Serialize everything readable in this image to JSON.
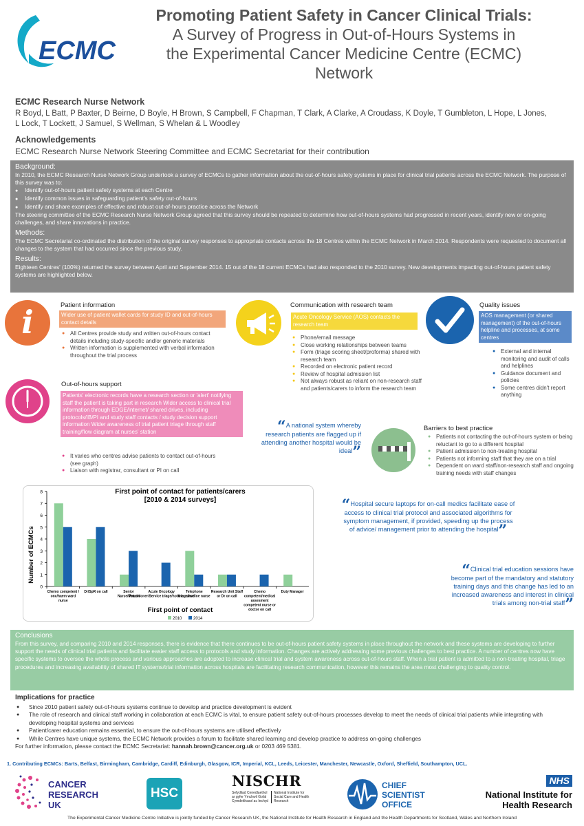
{
  "header": {
    "logo_text": "ECMC",
    "title_line1": "Promoting Patient Safety in Cancer Clinical Trials:",
    "title_line2": "A Survey of Progress in Out-of-Hours Systems in",
    "title_line3": "the Experimental Cancer Medicine Centre (ECMC)",
    "title_line4": "Network"
  },
  "network": {
    "heading": "ECMC Research Nurse Network",
    "authors_line1": "R Boyd, L Batt, P Baxter, D Beirne, D Boyle, H Brown, S Campbell, F Chapman, T Clark, A Clarke, A Croudass, K Doyle, T Gumbleton, L Hope, L Jones,",
    "authors_line2": "L Lock, T Lockett, J Samuel, S Wellman, S Whelan & L Woodley"
  },
  "acknowledgements": {
    "heading": "Acknowledgements",
    "text": "ECMC Research Nurse Network Steering Committee and ECMC Secretariat for their contribution"
  },
  "background": {
    "heading": "Background:",
    "text1": "In 2010, the ECMC Research Nurse Network Group undertook a survey of ECMCs to gather information about the out-of-hours safety systems in place for clinical trial patients across the ECMC Network. The purpose of this survey was to:",
    "bullets": [
      "Identify out-of-hours patient safety systems at each Centre",
      "Identify common issues in safeguarding patient's safety out-of-hours",
      "Identify and share examples of effective and robust out-of-hours practice across the Network"
    ],
    "text2": "The steering committee of the ECMC Research Nurse Network Group agreed that this survey should be repeated to determine how out-of-hours systems had progressed in recent years, identify new or on-going challenges, and share innovations in practice.",
    "methods_heading": "Methods:",
    "methods_text": "The ECMC Secretariat co-ordinated the distribution of the original survey responses to appropriate contacts across the 18 Centres within the ECMC Network in March 2014. Respondents were requested to document all changes to the system that had occurred since the previous study.",
    "results_heading": "Results:",
    "results_text": "Eighteen Centres' (100%) returned the survey between April and September 2014. 15 out of the 18 current ECMCs had also responded to the 2010 survey.  New developments impacting out-of-hours patient safety systems are highlighted below."
  },
  "patient_info": {
    "title": "Patient information",
    "highlight": "Wider use of patient wallet cards for study ID and out-of-hours contact details",
    "bullets": [
      "All Centres provide study and written out-of-hours contact details including study-specific and/or generic materials",
      "Written information is supplemented with verbal information throughout the trial process"
    ],
    "icon_glyph": "i"
  },
  "communication": {
    "title": "Communication with research team",
    "highlight": "Acute Oncology Service (AOS) contacts the research team",
    "bullets": [
      "Phone/email message",
      "Close working relationships between teams",
      "Form (triage scoring sheet/proforma) shared with research team",
      "Recorded on electronic patient record",
      "Review of hospital admission list",
      "Not always robust as reliant on non-research staff and patients/carers to inform the research team"
    ]
  },
  "quality": {
    "title": "Quality issues",
    "highlight": "AOS management (or shared management) of the out-of-hours helpline and processes, at some centres",
    "bullets": [
      "External and internal monitoring and audit of calls and helplines",
      "Guidance document and policies",
      "Some centres didn't report anything"
    ]
  },
  "ooh_support": {
    "title": "Out-of-hours support",
    "highlight": "Patients' electronic records have a research section or 'alert' notifying staff the patient is taking part in research Wider access to clinical trial information through EDGE/internet/ shared drives, including protocols/IB/PI and study staff contacts / study decision support information Wider awareness of trial patient triage through staff training/flow diagram at nurses' station",
    "bullets": [
      "It varies who centres advise patients to contact out-of-hours (see graph)",
      "Liaison with registrar, consultant or PI on call"
    ]
  },
  "quote1": {
    "open": "“",
    "text": "A national system whereby research patients are flagged up if attending another hospital would be ideal",
    "close": "”"
  },
  "barriers": {
    "title": "Barriers to best practice",
    "bullets": [
      "Patients not contacting the out-of-hours system or being reluctant to go to a different hospital",
      "Patient admission to non-treating hospital",
      "Patients not informing staff that they are on a trial",
      "Dependent on ward staff/non-research staff and ongoing training needs with staff changes"
    ]
  },
  "quote2": {
    "open": "“",
    "text": "Hospital secure laptops for on-call medics facilitate ease of access to clinical trial protocol and associated algorithms for symptom management, if provided, speeding up the process of advice/ management prior to attending the hospital",
    "close": "”"
  },
  "quote3": {
    "open": "“",
    "text": "Clinical trial education sessions have become part of the mandatory and statutory training days and this change has led to an increased awareness and interest in clinical trials among non-trial staff",
    "close": "”"
  },
  "chart_data": {
    "type": "bar",
    "title": "First point of contact for patients/carers",
    "subtitle": "[2010 & 2014 surveys]",
    "xlabel": "First point of contact",
    "ylabel": "Number of ECMCs",
    "ylim": [
      0,
      8
    ],
    "yticks": [
      "0",
      "1",
      "2",
      "3",
      "4",
      "5",
      "6",
      "7",
      "8"
    ],
    "categories": [
      "Chemo competent / onc/haem ward nurse",
      "Dr/SpR on call",
      "Senior Nurse/Matron",
      "Acute Oncology Practitioner/Service triage/hotline nurse",
      "Telephone triage/hotline nurse",
      "Research Unit Staff or Dr on call",
      "Chemo competent/medical assessment competent nurse or doctor on call",
      "Duty Manager"
    ],
    "category_lines": [
      [
        "Chemo competent /",
        "onc/haem ward",
        "nurse"
      ],
      [
        "Dr/SpR on call"
      ],
      [
        "Senior",
        "Nurse/Matron"
      ],
      [
        "Acute Oncology",
        "Practitioner/Service triage/hotline nurse"
      ],
      [
        "Telephone",
        "triage/hotline nurse"
      ],
      [
        "Research Unit Staff",
        "or Dr on call"
      ],
      [
        "Chemo",
        "competent/medical",
        "assesment",
        "competent nurse or",
        "doctor on call"
      ],
      [
        "Duty Manager"
      ]
    ],
    "series": [
      {
        "name": "2010",
        "values": [
          7,
          4,
          1,
          0,
          3,
          1,
          0,
          1
        ],
        "color": "#8fd09a"
      },
      {
        "name": "2014",
        "values": [
          5,
          5,
          3,
          2,
          1,
          1,
          1,
          0
        ],
        "color": "#1b64ae"
      }
    ],
    "legend": "bottom",
    "grid": false
  },
  "conclusions": {
    "heading": "Conclusions",
    "text": "From this survey, and comparing 2010 and 2014 responses, there is evidence that there continues to be out-of-hours patient safety systems in place throughout the network and these systems are developing to further support the needs of clinical trial patients and facilitate easier staff access to protocols and study information.  Changes are actively addressing some previous challenges to best practice.  A number of centres now have specific systems to oversee the whole process and various approaches are adopted to increase clinical trial and system awareness across out-of-hours staff.  When a trial patient is admitted to a non-treating hospital, triage procedures and increasing availability of shared IT systems/trial information across hospitals are facilitating research communication, however this remains the area most challenging to quality control."
  },
  "implications": {
    "heading": "Implications for practice",
    "bullets": [
      "Since 2010 patient safety out-of-hours systems continue to develop and practice development is evident",
      "The role of research and clinical staff working in collaboration at each ECMC is vital, to ensure patient safety out-of-hours processes develop to meet the needs of clinical trial patients while integrating with developing hospital systems and services",
      "Patient/carer education remains essential, to ensure the out-of-hours systems are utilised effectively",
      "While Centres have unique systems, the ECMC Network provides a forum to facilitate shared learning and develop practice to address on-going challenges"
    ],
    "contact_prefix": "For further information, please contact the ECMC Secretariat: ",
    "contact_email": "hannah.brown@cancer.org.uk",
    "contact_suffix": " or 0203 469 5381."
  },
  "contributing": "1.   Contributing ECMCs: Barts, Belfast, Birmingham, Cambridge, Cardiff, Edinburgh, Glasgow, ICR, Imperial, KCL, Leeds, Leicester, Manchester, Newcastle, Oxford, Sheffield, Southampton, UCL.",
  "logos": {
    "cruk_line1": "CANCER",
    "cruk_line2": "RESEARCH",
    "cruk_line3": "UK",
    "hsc": "HSC",
    "nischr": "NISCHR",
    "nischr_sub_left": "Sefydliad Cenedlaethol ar gyfer Ymchwil Gofal Cymdeithasol ac Iechyd",
    "nischr_sub_right": "National Institute for Social Care and Health Research",
    "cso_line1": "CHIEF",
    "cso_line2": "SCIENTIST",
    "cso_line3": "OFFICE",
    "nhs": "NHS",
    "nihr_line1": "National Institute for",
    "nihr_line2": "Health Research"
  },
  "footer": "The Experimental Cancer Medicine Centre Initiative is jointly funded by Cancer Research UK, the National Institute for Health Research in England and the Health Departments for Scotland, Wales and Northern Ireland"
}
